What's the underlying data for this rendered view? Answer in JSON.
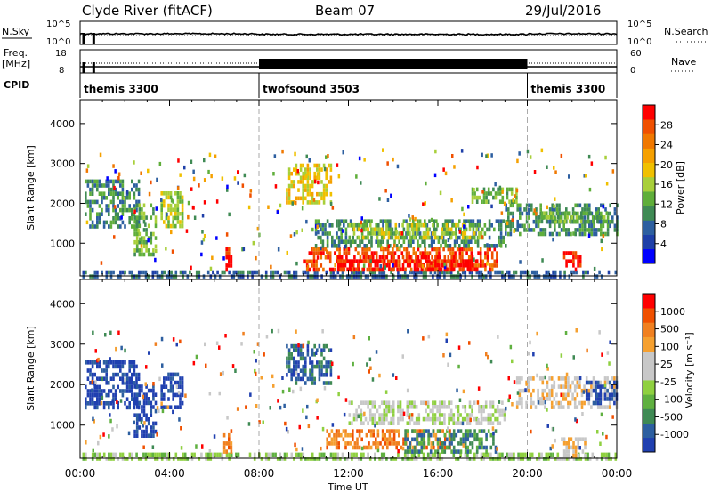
{
  "header": {
    "station": "Clyde River (fitACF)",
    "beam": "Beam 07",
    "date": "29/Jul/2016"
  },
  "info_panels": {
    "nsky_label": "N.Sky",
    "nsearch_label": "N.Search",
    "noise_ticks_left": [
      "10^5",
      "10^0"
    ],
    "noise_ticks_right": [
      "10^5",
      "10^0"
    ],
    "freq_label_1": "Freq.",
    "freq_label_2": "[MHz]",
    "freq_ticks": [
      "18",
      "8"
    ],
    "nave_label": "Nave",
    "nave_ticks": [
      "60",
      "0"
    ],
    "cpid_label": "CPID",
    "cpid_segments": [
      {
        "name": "themis 3300",
        "start_hour": 0,
        "end_hour": 8
      },
      {
        "name": "twofsound 3503",
        "start_hour": 8,
        "end_hour": 20
      },
      {
        "name": "themis 3300",
        "start_hour": 20,
        "end_hour": 24
      }
    ]
  },
  "chart_data": [
    {
      "type": "heatmap",
      "name": "power",
      "xlabel": "",
      "ylabel": "Slant Range [km]",
      "x_range_hours": [
        0,
        24
      ],
      "ylim": [
        180,
        4600
      ],
      "yticks": [
        1000,
        2000,
        3000,
        4000
      ],
      "colorbar": {
        "label": "Power [dB]",
        "ticks": [
          "28",
          "24",
          "20",
          "16",
          "12",
          "8",
          "4"
        ],
        "colors": [
          "#0000ff",
          "#1e3fa8",
          "#2d5fa0",
          "#3f8a54",
          "#5fae3a",
          "#a8cf3a",
          "#f0c000",
          "#f5a000",
          "#f07800",
          "#f05000",
          "#ff0000"
        ]
      },
      "regions": [
        {
          "t0": 0.1,
          "t1": 24,
          "r0": 200,
          "r1": 320,
          "level": 2
        },
        {
          "t0": 10,
          "t1": 18.6,
          "r0": 350,
          "r1": 900,
          "level": 9
        },
        {
          "t0": 11.5,
          "t1": 17.8,
          "r0": 380,
          "r1": 700,
          "level": 10
        },
        {
          "t0": 10.5,
          "t1": 19,
          "r0": 900,
          "r1": 1600,
          "level": 3
        },
        {
          "t0": 12,
          "t1": 18,
          "r0": 1100,
          "r1": 1500,
          "level": 5
        },
        {
          "t0": 21.6,
          "t1": 22.4,
          "r0": 300,
          "r1": 800,
          "level": 10
        },
        {
          "t0": 19,
          "t1": 24,
          "r0": 1200,
          "r1": 2000,
          "level": 3
        },
        {
          "t0": 20.5,
          "t1": 23.6,
          "r0": 1500,
          "r1": 1800,
          "level": 4
        },
        {
          "t0": 0.2,
          "t1": 2.6,
          "r0": 1400,
          "r1": 2600,
          "level": 3
        },
        {
          "t0": 2.4,
          "t1": 3.4,
          "r0": 700,
          "r1": 2000,
          "level": 4
        },
        {
          "t0": 3.6,
          "t1": 4.6,
          "r0": 1400,
          "r1": 2300,
          "level": 5
        },
        {
          "t0": 6.4,
          "t1": 6.8,
          "r0": 350,
          "r1": 900,
          "level": 10
        },
        {
          "t0": 9.2,
          "t1": 11.2,
          "r0": 2000,
          "r1": 3000,
          "level": 6
        },
        {
          "t0": 17.5,
          "t1": 19.5,
          "r0": 2000,
          "r1": 2400,
          "level": 4
        }
      ]
    },
    {
      "type": "heatmap",
      "name": "velocity",
      "xlabel": "Time UT",
      "ylabel": "Slant Range [km]",
      "x_range_hours": [
        0,
        24
      ],
      "xticks": [
        "00:00",
        "04:00",
        "08:00",
        "12:00",
        "16:00",
        "20:00",
        "00:00"
      ],
      "ylim": [
        180,
        4600
      ],
      "yticks": [
        1000,
        2000,
        3000,
        4000
      ],
      "colorbar": {
        "label": "Velocity [m s⁻¹]",
        "ticks": [
          "1000",
          "500",
          "100",
          "25",
          "-25",
          "-100",
          "-500",
          "-1000"
        ],
        "colors": [
          "#2040b0",
          "#2d5fa0",
          "#3f8a54",
          "#5fb040",
          "#8fd040",
          "#c8c8c8",
          "#c8c8c8",
          "#f5a030",
          "#f08020",
          "#f05000",
          "#ff0000"
        ]
      },
      "regions": [
        {
          "t0": 0.1,
          "t1": 24,
          "r0": 200,
          "r1": 320,
          "level": 4
        },
        {
          "t0": 0.2,
          "t1": 2.6,
          "r0": 1400,
          "r1": 2600,
          "level": 0
        },
        {
          "t0": 2.4,
          "t1": 3.4,
          "r0": 700,
          "r1": 2000,
          "level": 0
        },
        {
          "t0": 3.6,
          "t1": 4.6,
          "r0": 1400,
          "r1": 2300,
          "level": 0
        },
        {
          "t0": 11,
          "t1": 16.5,
          "r0": 400,
          "r1": 900,
          "level": 8
        },
        {
          "t0": 14.5,
          "t1": 18.6,
          "r0": 300,
          "r1": 900,
          "level": 2
        },
        {
          "t0": 12,
          "t1": 19,
          "r0": 1000,
          "r1": 1600,
          "level": 5
        },
        {
          "t0": 9.2,
          "t1": 11.2,
          "r0": 2000,
          "r1": 3000,
          "level": 1
        },
        {
          "t0": 19.5,
          "t1": 24,
          "r0": 1400,
          "r1": 2200,
          "level": 6
        },
        {
          "t0": 22.5,
          "t1": 24,
          "r0": 1500,
          "r1": 2100,
          "level": 0
        },
        {
          "t0": 21.5,
          "t1": 22.6,
          "r0": 250,
          "r1": 700,
          "level": 6
        },
        {
          "t0": 6.4,
          "t1": 6.8,
          "r0": 350,
          "r1": 900,
          "level": 8
        }
      ]
    }
  ]
}
